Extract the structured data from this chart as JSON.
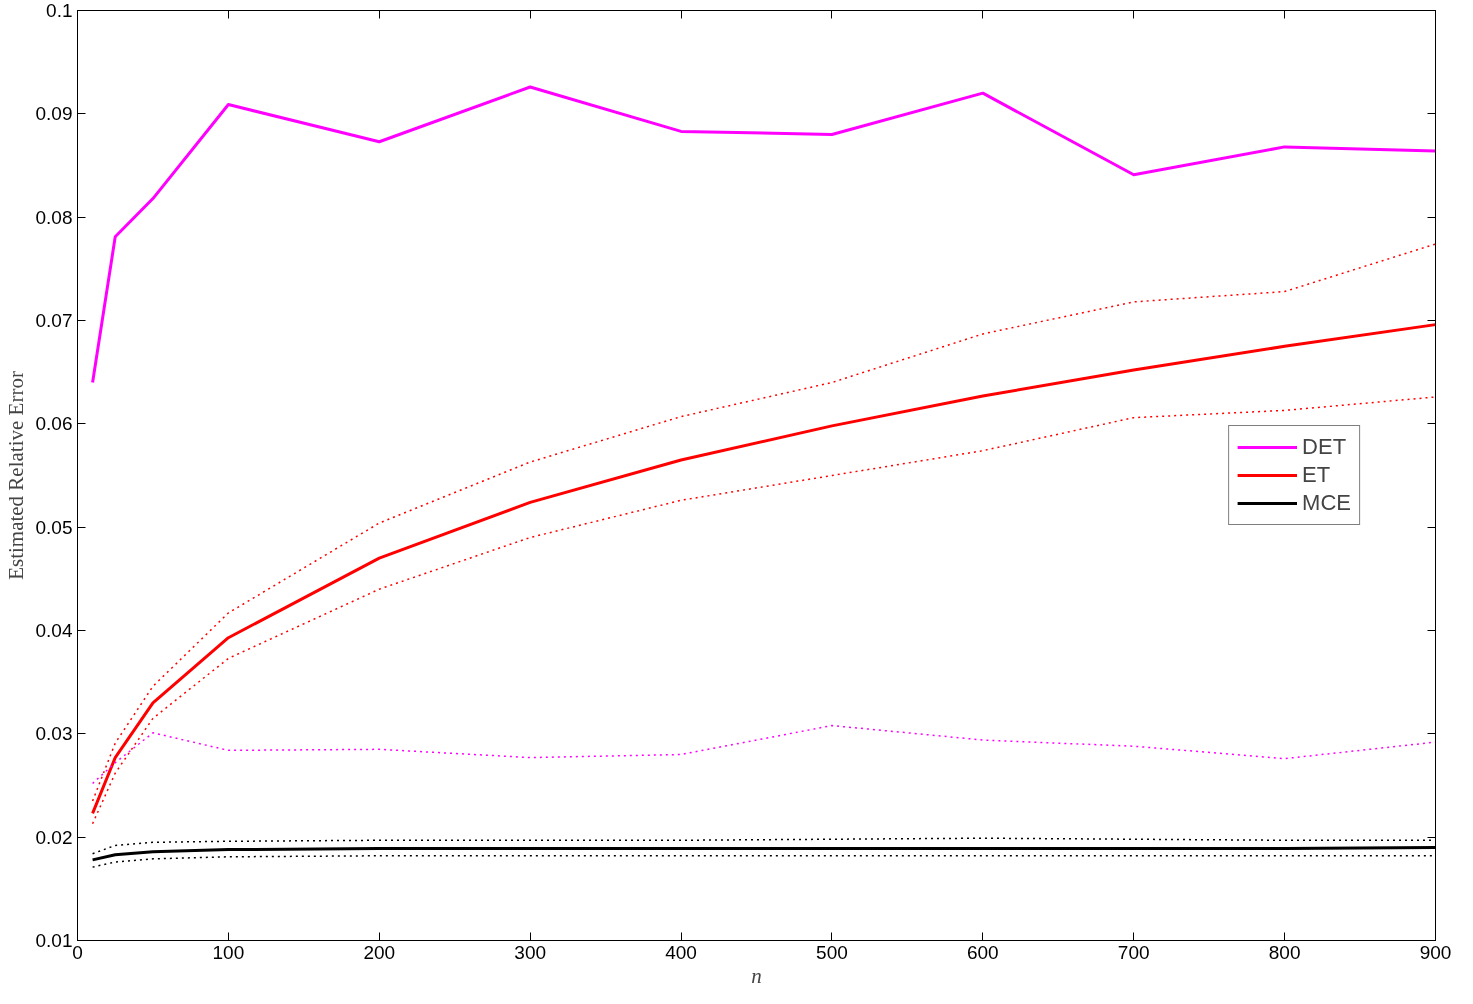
{
  "chart_data": {
    "type": "line",
    "xlabel": "n",
    "ylabel": "Estimated Relative Error",
    "x": [
      10,
      25,
      50,
      100,
      200,
      300,
      400,
      500,
      600,
      700,
      800,
      900
    ],
    "series": [
      {
        "name": "DET",
        "color": "#ff00ff",
        "values": [
          0.064,
          0.0781,
          0.0818,
          0.0909,
          0.0873,
          0.0926,
          0.0883,
          0.088,
          0.092,
          0.0841,
          0.0868,
          0.0864
        ]
      },
      {
        "name": "ET",
        "color": "#ff0000",
        "values": [
          0.0223,
          0.0277,
          0.033,
          0.0393,
          0.047,
          0.0524,
          0.0565,
          0.0598,
          0.0627,
          0.0652,
          0.0675,
          0.0696
        ]
      },
      {
        "name": "MCE",
        "color": "#000000",
        "values": [
          0.0178,
          0.0183,
          0.0186,
          0.0188,
          0.0189,
          0.0189,
          0.0189,
          0.0189,
          0.0189,
          0.0189,
          0.0189,
          0.019
        ]
      },
      {
        "color": "#ff00ff",
        "line_style": "dotted",
        "values": [
          0.0252,
          0.0272,
          0.0301,
          0.0284,
          0.0285,
          0.0277,
          0.028,
          0.0308,
          0.0294,
          0.0288,
          0.0276,
          0.0292
        ]
      },
      {
        "color": "#ff0000",
        "line_style": "dotted",
        "values": [
          0.0235,
          0.0291,
          0.0346,
          0.0417,
          0.0504,
          0.0563,
          0.0607,
          0.064,
          0.0687,
          0.0718,
          0.0728,
          0.0774
        ]
      },
      {
        "color": "#ff0000",
        "line_style": "dotted",
        "values": [
          0.0213,
          0.0262,
          0.0315,
          0.0373,
          0.044,
          0.049,
          0.0526,
          0.055,
          0.0574,
          0.0606,
          0.0613,
          0.0626
        ]
      },
      {
        "color": "#000000",
        "line_style": "dotted",
        "values": [
          0.0184,
          0.0192,
          0.0195,
          0.0196,
          0.0197,
          0.0197,
          0.0197,
          0.0198,
          0.0199,
          0.0198,
          0.0197,
          0.0197
        ]
      },
      {
        "color": "#000000",
        "line_style": "dotted",
        "values": [
          0.0171,
          0.0176,
          0.0179,
          0.0181,
          0.0182,
          0.0182,
          0.0182,
          0.0182,
          0.0182,
          0.0182,
          0.0182,
          0.0182
        ]
      }
    ],
    "xlim": [
      0,
      900
    ],
    "xticks": [
      0,
      100,
      200,
      300,
      400,
      500,
      600,
      700,
      800,
      900
    ],
    "ylim": [
      0.01,
      0.1
    ],
    "yticks": [
      0.01,
      0.02,
      0.03,
      0.04,
      0.05,
      0.06,
      0.07,
      0.08,
      0.09,
      0.1
    ],
    "grid": false,
    "legend": "right",
    "line_style": "solid"
  }
}
